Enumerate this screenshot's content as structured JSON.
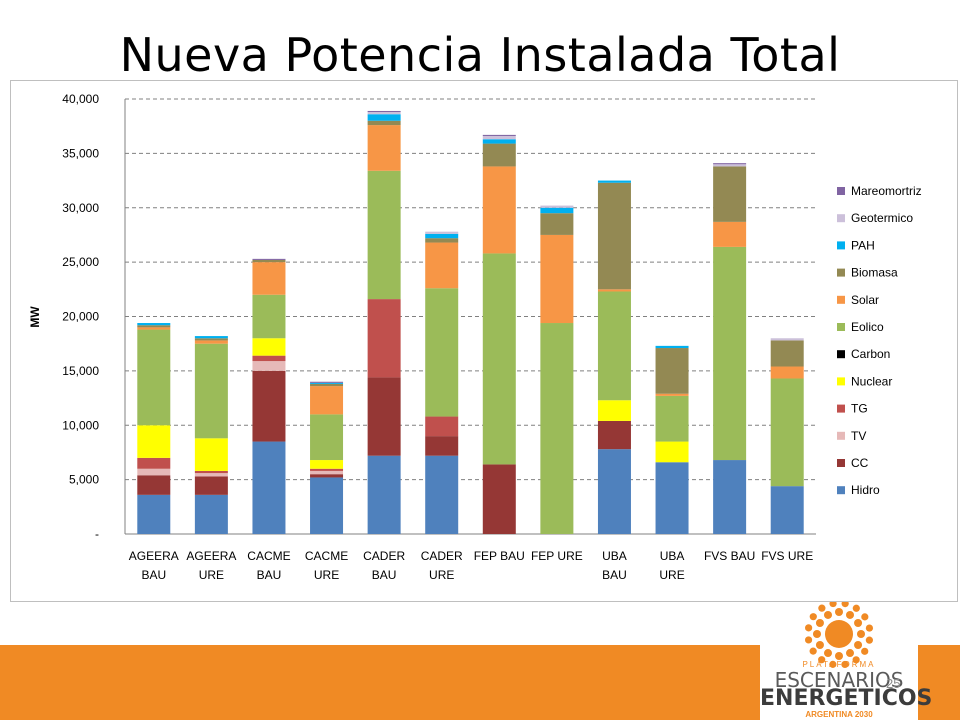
{
  "slide": {
    "title": "Nueva Potencia Instalada Total",
    "page_number": "25"
  },
  "logo": {
    "line1": "PLATAFORMA",
    "line2": "ESCENARIOS",
    "line3": "ENERGETICOS",
    "line4": "ARGENTINA 2030"
  },
  "colors": {
    "footer": "#f08a24",
    "Hidro": "#4f81bd",
    "CC": "#953735",
    "TV": "#e6b9b8",
    "TG": "#c0504d",
    "Nuclear": "#ffff00",
    "Carbon": "#000000",
    "Eolico": "#9bbb59",
    "Solar": "#f79646",
    "Biomasa": "#938953",
    "PAH": "#00b0f0",
    "Geotermico": "#ccc0da",
    "Mareomotriz": "#8064a2"
  },
  "chart_data": {
    "type": "bar",
    "stacked": true,
    "title": "",
    "xlabel": "",
    "ylabel": "MW",
    "ylim": [
      0,
      40000
    ],
    "yticks": [
      0,
      5000,
      10000,
      15000,
      20000,
      25000,
      30000,
      35000,
      40000
    ],
    "ytick_labels": [
      "-",
      "5,000",
      "10,000",
      "15,000",
      "20,000",
      "25,000",
      "30,000",
      "35,000",
      "40,000"
    ],
    "grid": "horizontal dashed",
    "legend_position": "right",
    "categories": [
      [
        "AGEERA",
        "BAU"
      ],
      [
        "AGEERA",
        "URE"
      ],
      [
        "CACME",
        "BAU"
      ],
      [
        "CACME",
        "URE"
      ],
      [
        "CADER",
        "BAU"
      ],
      [
        "CADER",
        "URE"
      ],
      [
        "FEP BAU"
      ],
      [
        "FEP URE"
      ],
      [
        "UBA",
        "BAU"
      ],
      [
        "UBA",
        "URE"
      ],
      [
        "FVS BAU"
      ],
      [
        "FVS URE"
      ]
    ],
    "series": [
      {
        "name": "Hidro",
        "values": [
          3600,
          3600,
          8500,
          5200,
          7200,
          7200,
          0,
          0,
          7800,
          6600,
          6800,
          4400
        ]
      },
      {
        "name": "CC",
        "values": [
          1800,
          1700,
          6500,
          300,
          7200,
          1800,
          6400,
          0,
          2600,
          0,
          0,
          0
        ]
      },
      {
        "name": "TV",
        "values": [
          600,
          300,
          900,
          300,
          0,
          0,
          0,
          0,
          0,
          0,
          0,
          0
        ]
      },
      {
        "name": "TG",
        "values": [
          1000,
          200,
          500,
          200,
          7200,
          1800,
          0,
          0,
          0,
          0,
          0,
          0
        ]
      },
      {
        "name": "Nuclear",
        "values": [
          3000,
          3000,
          1600,
          800,
          0,
          0,
          0,
          0,
          1900,
          1900,
          0,
          0
        ]
      },
      {
        "name": "Carbon",
        "values": [
          0,
          0,
          0,
          0,
          0,
          0,
          0,
          0,
          0,
          0,
          0,
          0
        ]
      },
      {
        "name": "Eolico",
        "values": [
          8800,
          8700,
          4000,
          4200,
          11800,
          11800,
          19400,
          19400,
          10000,
          4200,
          19600,
          9900
        ]
      },
      {
        "name": "Solar",
        "values": [
          200,
          300,
          3000,
          2600,
          4200,
          4200,
          8000,
          8100,
          200,
          200,
          2300,
          1100
        ]
      },
      {
        "name": "Biomasa",
        "values": [
          200,
          200,
          200,
          200,
          400,
          400,
          2100,
          2000,
          9800,
          4200,
          5100,
          2400
        ]
      },
      {
        "name": "PAH",
        "values": [
          200,
          200,
          0,
          100,
          600,
          400,
          400,
          500,
          200,
          200,
          0,
          0
        ]
      },
      {
        "name": "Geotermico",
        "values": [
          0,
          0,
          0,
          0,
          200,
          200,
          300,
          200,
          0,
          0,
          200,
          200
        ]
      },
      {
        "name": "Mareomotriz",
        "values": [
          0,
          0,
          100,
          100,
          100,
          0,
          100,
          0,
          0,
          0,
          100,
          0
        ]
      }
    ],
    "legend_order": [
      "Mareomortriz",
      "Geotermico",
      "PAH",
      "Biomasa",
      "Solar",
      "Eolico",
      "Carbon",
      "Nuclear",
      "TG",
      "TV",
      "CC",
      "Hidro"
    ],
    "legend_series_keys": [
      "Mareomotriz",
      "Geotermico",
      "PAH",
      "Biomasa",
      "Solar",
      "Eolico",
      "Carbon",
      "Nuclear",
      "TG",
      "TV",
      "CC",
      "Hidro"
    ]
  }
}
